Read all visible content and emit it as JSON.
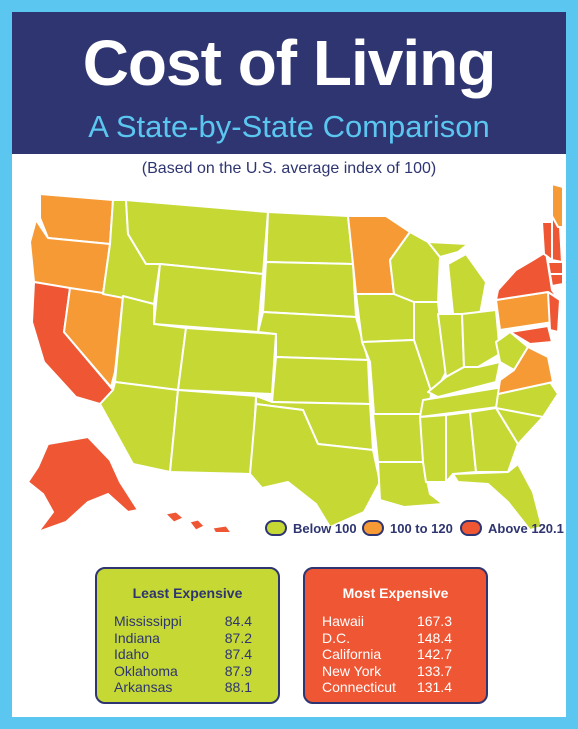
{
  "header": {
    "title": "Cost of Living",
    "subtitle": "A State-by-State Comparison"
  },
  "note": "(Based on the U.S. average index of 100)",
  "colors": {
    "below_100": "#c5d834",
    "range_100_120": "#f59a34",
    "above_120": "#ee5634",
    "navy": "#2e3570",
    "border": "#5bc6f0"
  },
  "legend": [
    {
      "label": "Below 100",
      "color": "#c5d834"
    },
    {
      "label": "100 to 120",
      "color": "#f59a34"
    },
    {
      "label": "Above 120.1",
      "color": "#ee5634"
    }
  ],
  "least_expensive": {
    "title": "Least Expensive",
    "rows": [
      {
        "state": "Mississippi",
        "value": "84.4"
      },
      {
        "state": "Indiana",
        "value": "87.2"
      },
      {
        "state": "Idaho",
        "value": "87.4"
      },
      {
        "state": "Oklahoma",
        "value": "87.9"
      },
      {
        "state": "Arkansas",
        "value": "88.1"
      }
    ]
  },
  "most_expensive": {
    "title": "Most Expensive",
    "rows": [
      {
        "state": "Hawaii",
        "value": "167.3"
      },
      {
        "state": "D.C.",
        "value": "148.4"
      },
      {
        "state": "California",
        "value": "142.7"
      },
      {
        "state": "New York",
        "value": "133.7"
      },
      {
        "state": "Connecticut",
        "value": "131.4"
      }
    ]
  }
}
